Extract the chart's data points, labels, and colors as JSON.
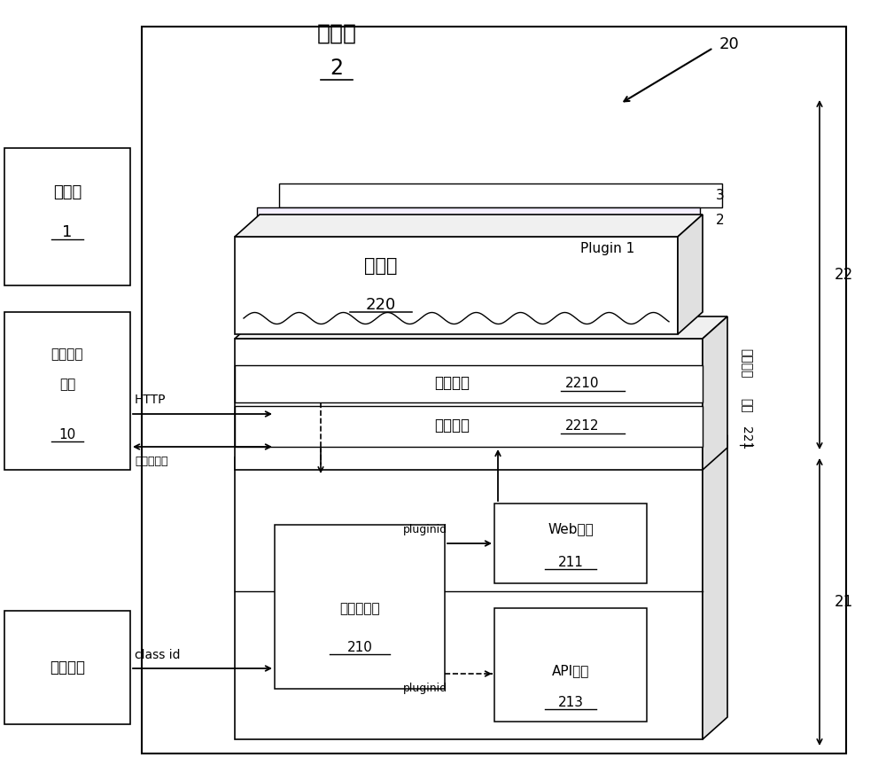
{
  "bg_color": "#ffffff",
  "title_ke_huan": "客户端",
  "title_ke_num": "2",
  "label_20": "20",
  "server_label": "服务端",
  "server_num": "1",
  "pack_label1": "打包加密",
  "pack_label2": "工具",
  "pack_num": "10",
  "page_label": "页面触发",
  "plugin_lib_label1": "插件库",
  "plugin_lib_num": "220",
  "plugin1_label": "Plugin 1",
  "plugin_iface_label": "插件接口",
  "plugin_iface_num": "2210",
  "frame_iface_label": "框架接口",
  "frame_iface_num": "2212",
  "plugin_frame_label1": "插件框架",
  "plugin_frame_label2": "模块",
  "plugin_frame_num": "221",
  "plugin_mgr_label1": "插件管理器",
  "plugin_mgr_num": "210",
  "web_engine_label1": "Web引擎",
  "web_engine_num": "211",
  "api_module_label1": "API模块",
  "api_module_num": "213",
  "label_22": "22",
  "label_21": "21",
  "label_3": "3",
  "label_2": "2",
  "http_label": "HTTP",
  "enc_data_label": "加密数据包",
  "class_id_label": "class id",
  "pluginid_label1": "pluginid",
  "pluginid_label2": "pluginid"
}
